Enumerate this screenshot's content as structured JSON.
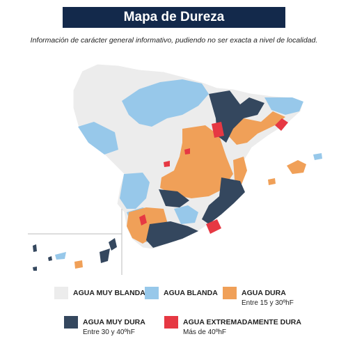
{
  "header": {
    "title": "Mapa de Dureza",
    "subtitle": "Información de carácter general informativo, pudiendo no ser exacta a nivel de localidad."
  },
  "colors": {
    "muy_blanda": "#ececec",
    "blanda": "#97c8ea",
    "dura": "#f0a058",
    "muy_dura": "#34475e",
    "extremadamente_dura": "#e63843",
    "title_bg": "#13294b"
  },
  "legend": [
    {
      "label": "AGUA MUY BLANDA",
      "note": "",
      "color": "#ececec"
    },
    {
      "label": "AGUA BLANDA",
      "note": "",
      "color": "#97c8ea"
    },
    {
      "label": "AGUA DURA",
      "note": "Entre 15 y 30ºhF",
      "color": "#f0a058"
    },
    {
      "label": "AGUA MUY DURA",
      "note": "Entre 30 y 40ºhF",
      "color": "#34475e"
    },
    {
      "label": "AGUA EXTREMADAMENTE DURA",
      "note": "Más de 40ºhF",
      "color": "#e63843"
    }
  ]
}
